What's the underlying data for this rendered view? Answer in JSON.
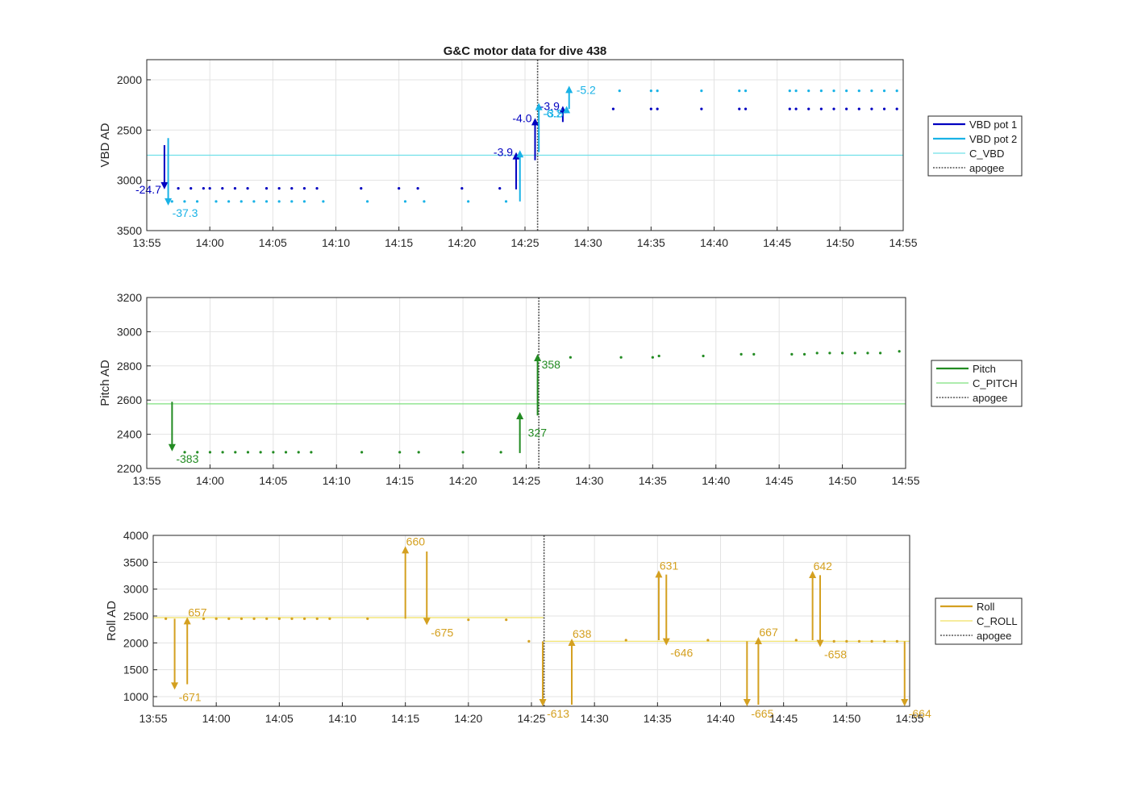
{
  "figure": {
    "title": "G&C motor data for dive 438"
  },
  "colors": {
    "vbd_pot1": "#0000c0",
    "vbd_pot2": "#19b2e6",
    "c_vbd": "#70e0e8",
    "pitch": "#228b22",
    "c_pitch": "#7ee07e",
    "roll": "#d4a020",
    "c_roll": "#f0e060",
    "apogee": "#555555",
    "grid": "#e3e3e3",
    "axis": "#262626"
  },
  "chart_data": [
    {
      "id": "vbd",
      "type": "scatter",
      "ylabel": "VBD AD",
      "y_reversed": true,
      "ylim": [
        3500,
        1800
      ],
      "yticks": [
        2000,
        2500,
        3000,
        3500
      ],
      "xlim": [
        "13:55",
        "14:55"
      ],
      "xticks": [
        "13:55",
        "14:00",
        "14:05",
        "14:10",
        "14:15",
        "14:20",
        "14:25",
        "14:30",
        "14:35",
        "14:40",
        "14:45",
        "14:50",
        "14:55"
      ],
      "apogee": "14:26",
      "legend_location": "outside-right",
      "legend": [
        {
          "label": "VBD pot 1",
          "style": "thick",
          "color_key": "vbd_pot1"
        },
        {
          "label": "VBD pot 2",
          "style": "thick",
          "color_key": "vbd_pot2"
        },
        {
          "label": "C_VBD",
          "style": "thin",
          "color_key": "c_vbd"
        },
        {
          "label": "apogee",
          "style": "dotted",
          "color_key": "apogee"
        }
      ],
      "constant_lines": [
        {
          "y": 2750,
          "color_key": "c_vbd",
          "from": "13:55",
          "to": "14:55"
        }
      ],
      "series": [
        {
          "color_key": "vbd_pot1",
          "y": 3080,
          "x": [
            "13:57.5",
            "13:58.5",
            "13:59.5",
            "14:00",
            "14:01",
            "14:02",
            "14:03",
            "14:04.5",
            "14:05.5",
            "14:06.5",
            "14:07.5",
            "14:08.5",
            "14:12",
            "14:15",
            "14:16.5",
            "14:20",
            "14:23"
          ]
        },
        {
          "color_key": "vbd_pot2",
          "y": 3210,
          "x": [
            "13:57",
            "13:58",
            "13:59",
            "14:00.5",
            "14:01.5",
            "14:02.5",
            "14:03.5",
            "14:04.5",
            "14:05.5",
            "14:06.5",
            "14:07.5",
            "14:09",
            "14:12.5",
            "14:15.5",
            "14:17",
            "14:20.5",
            "14:23.5"
          ]
        },
        {
          "color_key": "vbd_pot1",
          "y": 2290,
          "x": [
            "14:32",
            "14:35",
            "14:35.5",
            "14:39",
            "14:42",
            "14:42.5",
            "14:46",
            "14:46.5",
            "14:47.5",
            "14:48.5",
            "14:49.5",
            "14:50.5",
            "14:51.5",
            "14:52.5",
            "14:53.5",
            "14:54.5"
          ]
        },
        {
          "color_key": "vbd_pot2",
          "y": 2110,
          "x": [
            "14:32.5",
            "14:35",
            "14:35.5",
            "14:39",
            "14:42",
            "14:42.5",
            "14:46",
            "14:46.5",
            "14:47.5",
            "14:48.5",
            "14:49.5",
            "14:50.5",
            "14:51.5",
            "14:52.5",
            "14:53.5",
            "14:54.5"
          ]
        }
      ],
      "arrows": [
        {
          "x": "13:56.4",
          "from": 2650,
          "to": 3090,
          "color_key": "vbd_pot1",
          "label": "-24.7",
          "label_side": "left"
        },
        {
          "x": "13:56.7",
          "from": 2580,
          "to": 3250,
          "color_key": "vbd_pot2",
          "label": "-37.3",
          "label_side": "right-below"
        },
        {
          "x": "14:24.3",
          "from": 3090,
          "to": 2720,
          "color_key": "vbd_pot1",
          "label": "-3.9",
          "label_side": "left"
        },
        {
          "x": "14:24.6",
          "from": 3210,
          "to": 2700,
          "color_key": "vbd_pot2",
          "label": "",
          "label_side": "none"
        },
        {
          "x": "14:25.8",
          "from": 2800,
          "to": 2380,
          "color_key": "vbd_pot1",
          "label": "-4.0",
          "label_side": "left"
        },
        {
          "x": "14:26.1",
          "from": 2720,
          "to": 2230,
          "color_key": "vbd_pot2",
          "label": "-6.2",
          "label_side": "right-below"
        },
        {
          "x": "14:28.0",
          "from": 2420,
          "to": 2260,
          "color_key": "vbd_pot1",
          "label": "-3.9",
          "label_side": "left"
        },
        {
          "x": "14:28.3",
          "from": 2310,
          "to": 2260,
          "color_key": "vbd_pot2",
          "label": "-3.5",
          "label_side": "left-below"
        },
        {
          "x": "14:28.5",
          "from": 2290,
          "to": 2060,
          "color_key": "vbd_pot2",
          "label": "-5.2",
          "label_side": "right"
        }
      ]
    },
    {
      "id": "pitch",
      "type": "scatter",
      "ylabel": "Pitch AD",
      "y_reversed": false,
      "ylim": [
        2200,
        3200
      ],
      "yticks": [
        2200,
        2400,
        2600,
        2800,
        3000,
        3200
      ],
      "xlim": [
        "13:55",
        "14:55"
      ],
      "xticks": [
        "13:55",
        "14:00",
        "14:05",
        "14:10",
        "14:15",
        "14:20",
        "14:25",
        "14:30",
        "14:35",
        "14:40",
        "14:45",
        "14:50",
        "14:55"
      ],
      "apogee": "14:26",
      "legend_location": "outside-right",
      "legend": [
        {
          "label": "Pitch",
          "style": "thick",
          "color_key": "pitch"
        },
        {
          "label": "C_PITCH",
          "style": "thin",
          "color_key": "c_pitch"
        },
        {
          "label": "apogee",
          "style": "dotted",
          "color_key": "apogee"
        }
      ],
      "constant_lines": [
        {
          "y": 2578,
          "color_key": "c_pitch",
          "from": "13:55",
          "to": "14:55"
        }
      ],
      "series": [
        {
          "color_key": "pitch",
          "y": 2295,
          "x": [
            "13:58",
            "13:59",
            "14:00",
            "14:01",
            "14:02",
            "14:03",
            "14:04",
            "14:05",
            "14:06",
            "14:07",
            "14:08",
            "14:12",
            "14:15",
            "14:16.5",
            "14:20",
            "14:23"
          ]
        },
        {
          "color_key": "pitch",
          "y": 2850,
          "x": [
            "14:28.5",
            "14:32.5",
            "14:35"
          ]
        },
        {
          "color_key": "pitch",
          "y": 2858,
          "x": [
            "14:35.5",
            "14:39"
          ]
        },
        {
          "color_key": "pitch",
          "y": 2868,
          "x": [
            "14:42",
            "14:43",
            "14:46",
            "14:47"
          ]
        },
        {
          "color_key": "pitch",
          "y": 2875,
          "x": [
            "14:48",
            "14:49",
            "14:50",
            "14:51",
            "14:52",
            "14:53"
          ]
        },
        {
          "color_key": "pitch",
          "y": 2885,
          "x": [
            "14:54.5"
          ]
        }
      ],
      "arrows": [
        {
          "x": "13:57.0",
          "from": 2590,
          "to": 2300,
          "color_key": "pitch",
          "label": "-383",
          "label_side": "right-below"
        },
        {
          "x": "14:24.5",
          "from": 2290,
          "to": 2530,
          "color_key": "pitch",
          "label": "327",
          "label_side": "right-mid"
        },
        {
          "x": "14:25.9",
          "from": 2510,
          "to": 2870,
          "color_key": "pitch",
          "label": "358",
          "label_side": "right-below"
        }
      ]
    },
    {
      "id": "roll",
      "type": "scatter",
      "ylabel": "Roll AD",
      "y_reversed": false,
      "ylim": [
        820,
        4000
      ],
      "yticks": [
        1000,
        1500,
        2000,
        2500,
        3000,
        3500,
        4000
      ],
      "xlim": [
        "13:55",
        "14:55"
      ],
      "xticks": [
        "13:55",
        "14:00",
        "14:05",
        "14:10",
        "14:15",
        "14:20",
        "14:25",
        "14:30",
        "14:35",
        "14:40",
        "14:45",
        "14:50",
        "14:55"
      ],
      "apogee": "14:26",
      "legend_location": "outside-right",
      "legend": [
        {
          "label": "Roll",
          "style": "thick",
          "color_key": "roll"
        },
        {
          "label": "C_ROLL",
          "style": "thin",
          "color_key": "c_roll"
        },
        {
          "label": "apogee",
          "style": "dotted",
          "color_key": "apogee"
        }
      ],
      "constant_lines": [
        {
          "y": 2470,
          "color_key": "c_roll",
          "from": "13:55",
          "to": "14:26"
        },
        {
          "y": 2030,
          "color_key": "c_roll",
          "from": "14:26",
          "to": "14:55"
        }
      ],
      "series": [
        {
          "color_key": "roll",
          "y": 2450,
          "x": [
            "13:56",
            "13:59",
            "14:00",
            "14:01",
            "14:02",
            "14:03",
            "14:04",
            "14:05",
            "14:06",
            "14:07",
            "14:08",
            "14:09",
            "14:12"
          ]
        },
        {
          "color_key": "roll",
          "y": 2430,
          "x": [
            "14:20",
            "14:23"
          ]
        },
        {
          "color_key": "roll",
          "y": 2030,
          "x": [
            "14:24.8"
          ]
        },
        {
          "color_key": "roll",
          "y": 2050,
          "x": [
            "14:32.5",
            "14:39",
            "14:46"
          ]
        },
        {
          "color_key": "roll",
          "y": 2030,
          "x": [
            "14:49",
            "14:50",
            "14:51",
            "14:52",
            "14:53",
            "14:54"
          ]
        }
      ],
      "arrows": [
        {
          "x": "13:56.7",
          "from": 2450,
          "to": 1130,
          "color_key": "roll",
          "label": "-671",
          "label_side": "right-below"
        },
        {
          "x": "13:57.7",
          "from": 1230,
          "to": 2480,
          "color_key": "roll",
          "label": "657",
          "label_side": "right-top"
        },
        {
          "x": "14:15.0",
          "from": 2450,
          "to": 3800,
          "color_key": "roll",
          "label": "660",
          "label_side": "right-top"
        },
        {
          "x": "14:16.7",
          "from": 3700,
          "to": 2330,
          "color_key": "roll",
          "label": "-675",
          "label_side": "right-below"
        },
        {
          "x": "14:25.9",
          "from": 2030,
          "to": 820,
          "color_key": "roll",
          "label": "-613",
          "label_side": "right-below"
        },
        {
          "x": "14:28.2",
          "from": 850,
          "to": 2080,
          "color_key": "roll",
          "label": "638",
          "label_side": "right-top"
        },
        {
          "x": "14:35.1",
          "from": 2050,
          "to": 3350,
          "color_key": "roll",
          "label": "631",
          "label_side": "right-top"
        },
        {
          "x": "14:35.7",
          "from": 3270,
          "to": 1950,
          "color_key": "roll",
          "label": "-646",
          "label_side": "right-below"
        },
        {
          "x": "14:42.1",
          "from": 2030,
          "to": 820,
          "color_key": "roll",
          "label": "-665",
          "label_side": "right-below"
        },
        {
          "x": "14:43.0",
          "from": 850,
          "to": 2110,
          "color_key": "roll",
          "label": "667",
          "label_side": "right-top"
        },
        {
          "x": "14:47.3",
          "from": 2050,
          "to": 3340,
          "color_key": "roll",
          "label": "642",
          "label_side": "right-top"
        },
        {
          "x": "14:47.9",
          "from": 3260,
          "to": 1920,
          "color_key": "roll",
          "label": "-658",
          "label_side": "right-below"
        },
        {
          "x": "14:54.6",
          "from": 2030,
          "to": 820,
          "color_key": "roll",
          "label": "-664",
          "label_side": "right-below"
        }
      ]
    }
  ]
}
